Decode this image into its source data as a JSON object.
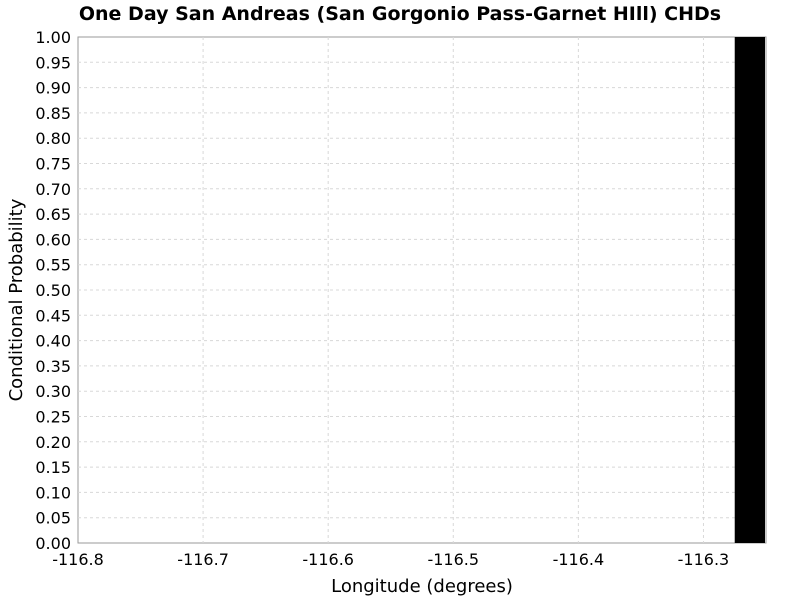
{
  "chart_data": {
    "type": "bar",
    "title": "One Day San Andreas (San Gorgonio Pass-Garnet HIll) CHDs",
    "xlabel": "Longitude (degrees)",
    "ylabel": "Conditional Probability",
    "xlim": [
      -116.8,
      -116.25
    ],
    "ylim": [
      0.0,
      1.0
    ],
    "xticks": [
      "-116.8",
      "-116.7",
      "-116.6",
      "-116.5",
      "-116.4",
      "-116.3"
    ],
    "yticks": [
      "0.00",
      "0.05",
      "0.10",
      "0.15",
      "0.20",
      "0.25",
      "0.30",
      "0.35",
      "0.40",
      "0.45",
      "0.50",
      "0.55",
      "0.60",
      "0.65",
      "0.70",
      "0.75",
      "0.80",
      "0.85",
      "0.90",
      "0.95",
      "1.00"
    ],
    "grid": true,
    "bars": [
      {
        "x_start": -116.275,
        "x_end": -116.25,
        "value": 1.0,
        "color": "#000000"
      }
    ]
  }
}
